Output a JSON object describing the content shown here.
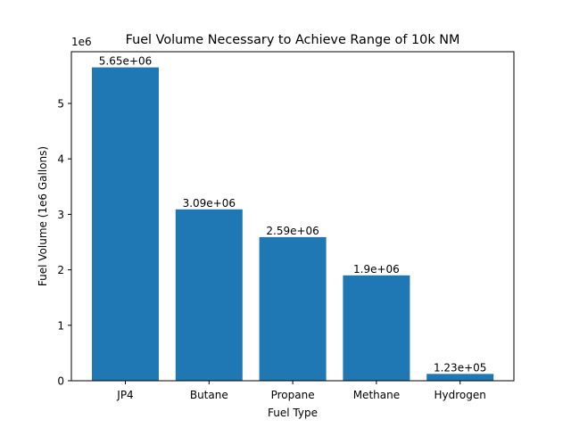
{
  "chart_data": {
    "type": "bar",
    "title": "Fuel Volume Necessary to Achieve Range of 10k NM",
    "xlabel": "Fuel Type",
    "ylabel": "Fuel Volume (1e6 Gallons)",
    "offset_text": "1e6",
    "categories": [
      "JP4",
      "Butane",
      "Propane",
      "Methane",
      "Hydrogen"
    ],
    "values": [
      5650000,
      3090000,
      2590000,
      1900000,
      123000
    ],
    "value_labels": [
      "5.65e+06",
      "3.09e+06",
      "2.59e+06",
      "1.9e+06",
      "1.23e+05"
    ],
    "ylim": [
      0,
      5932500
    ],
    "yticks": [
      0,
      1000000,
      2000000,
      3000000,
      4000000,
      5000000
    ],
    "ytick_labels": [
      "0",
      "1",
      "2",
      "3",
      "4",
      "5"
    ],
    "bar_color": "#1f77b4",
    "grid": false,
    "legend": "none"
  }
}
